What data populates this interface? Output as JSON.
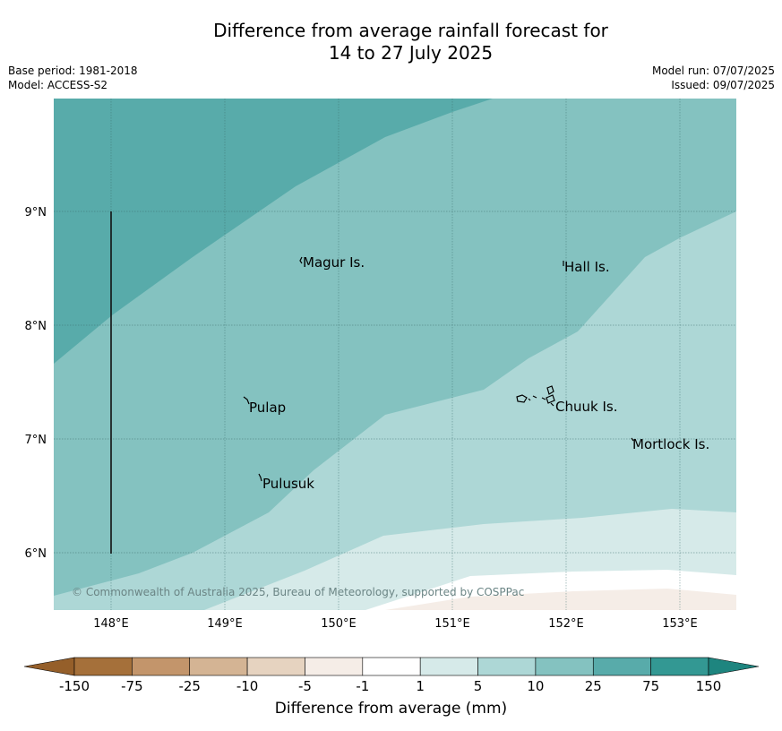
{
  "title_line1": "Difference from average rainfall forecast for",
  "title_line2": "14 to 27 July 2025",
  "base_period": "Base period: 1981-2018",
  "model": "Model: ACCESS-S2",
  "model_run": "Model run: 07/07/2025",
  "issued": "Issued: 09/07/2025",
  "lon_ticks": [
    "148°E",
    "149°E",
    "150°E",
    "151°E",
    "152°E",
    "153°E"
  ],
  "lat_ticks": [
    "9°N",
    "8°N",
    "7°N",
    "6°N"
  ],
  "places": [
    {
      "name": "Magur Is."
    },
    {
      "name": "Hall Is."
    },
    {
      "name": "Pulap"
    },
    {
      "name": "Chuuk Is."
    },
    {
      "name": "Mortlock Is."
    },
    {
      "name": "Pulusuk"
    }
  ],
  "copyright": "© Commonwealth of Australia 2025, Bureau of Meteorology, supported by COSPPac",
  "colorbar": {
    "labels": [
      "-150",
      "-75",
      "-25",
      "-10",
      "-5",
      "-1",
      "1",
      "5",
      "10",
      "25",
      "75",
      "150"
    ],
    "colors": [
      "#a5703a",
      "#c3956b",
      "#d4b494",
      "#e6d3c0",
      "#f5ede7",
      "#ffffff",
      "#d6eae9",
      "#add7d6",
      "#84c2c0",
      "#58abaa",
      "#339893"
    ],
    "low_extend_color": "#955f2a",
    "high_extend_color": "#1e857f",
    "title": "Difference from average (mm)"
  },
  "contour_colors": {
    "c75": "#58abaa",
    "c25": "#84c2c0",
    "c10": "#add7d6",
    "c5": "#d6eae9",
    "c1": "#ffffff",
    "cm1": "#f5ede7"
  }
}
